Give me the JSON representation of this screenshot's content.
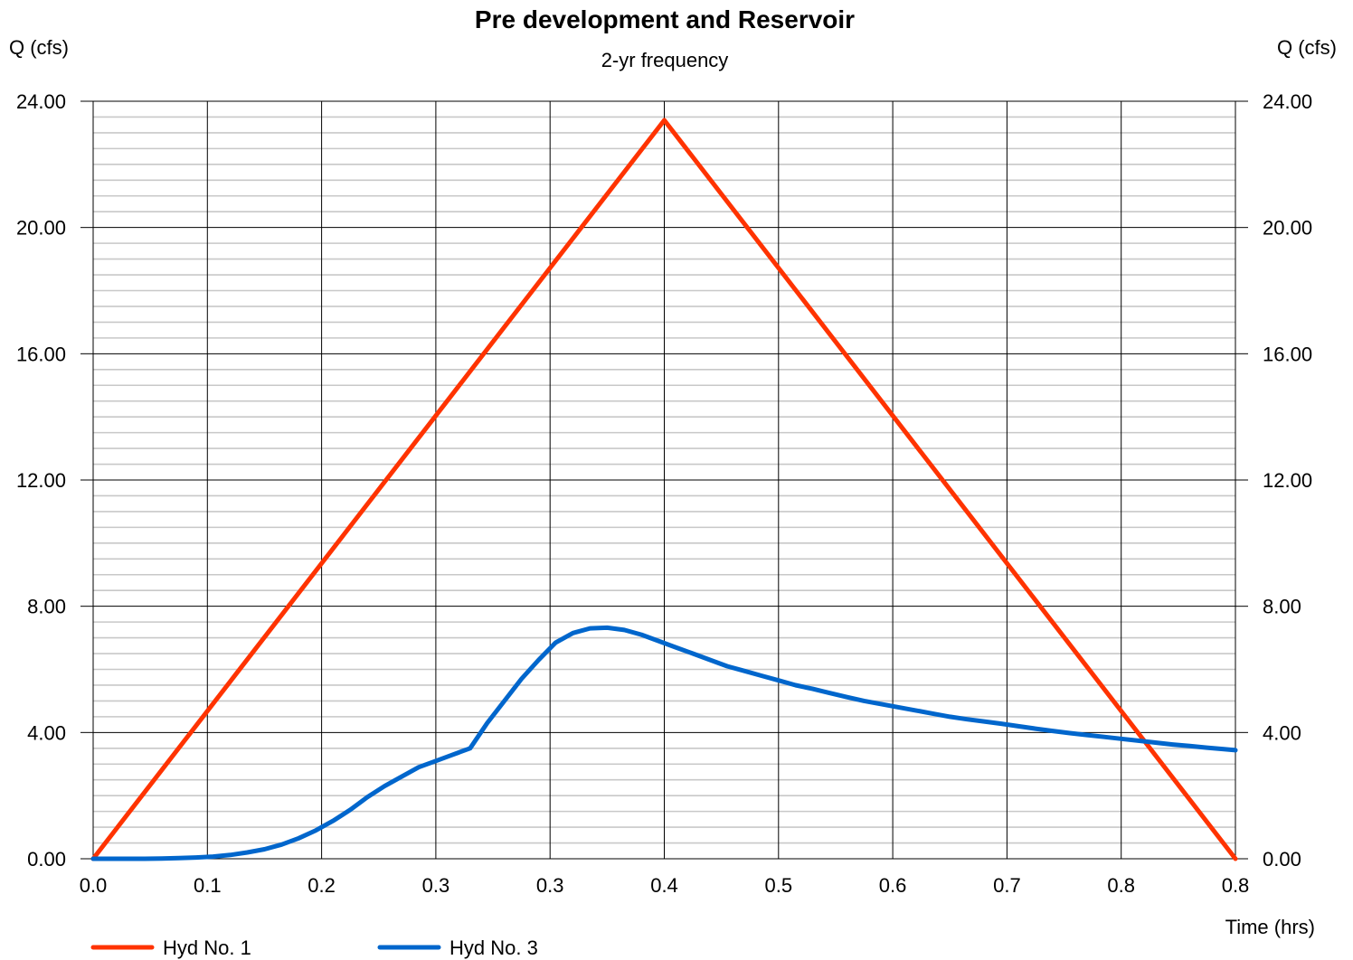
{
  "chart_data": {
    "type": "line",
    "title": "Pre development and Reservoir",
    "subtitle": "2-yr frequency",
    "ylabel_left": "Q (cfs)",
    "ylabel_right": "Q (cfs)",
    "xlabel": "Time (hrs)",
    "xlim": [
      0,
      0.8
    ],
    "ylim": [
      0,
      24
    ],
    "x_tick_labels": [
      "0.0",
      "0.1",
      "0.2",
      "0.3",
      "0.3",
      "0.4",
      "0.5",
      "0.6",
      "0.7",
      "0.8",
      "0.8"
    ],
    "y_tick_labels": [
      "0.00",
      "4.00",
      "8.00",
      "12.00",
      "16.00",
      "20.00",
      "24.00"
    ],
    "y_tick_values": [
      0,
      4,
      8,
      12,
      16,
      20,
      24
    ],
    "grid": true,
    "legend_position": "bottom-left",
    "series": [
      {
        "name": "Hyd No. 1",
        "color": "#ff3300",
        "x": [
          0.0,
          0.4,
          0.8
        ],
        "y": [
          0.0,
          23.4,
          0.0
        ]
      },
      {
        "name": "Hyd No. 3",
        "color": "#0066cc",
        "x": [
          0.0,
          0.012,
          0.024,
          0.036,
          0.048,
          0.06,
          0.072,
          0.084,
          0.096,
          0.108,
          0.12,
          0.132,
          0.144,
          0.156,
          0.168,
          0.18,
          0.192,
          0.204,
          0.216,
          0.228,
          0.24,
          0.252,
          0.264,
          0.276,
          0.288,
          0.3,
          0.312,
          0.324,
          0.336,
          0.348,
          0.36,
          0.372,
          0.384,
          0.396,
          0.408,
          0.42,
          0.432,
          0.444,
          0.456,
          0.468,
          0.48,
          0.492,
          0.504,
          0.516,
          0.528,
          0.54,
          0.552,
          0.564,
          0.576,
          0.588,
          0.6,
          0.612,
          0.624,
          0.636,
          0.648,
          0.66,
          0.672,
          0.684,
          0.696,
          0.708,
          0.72,
          0.732,
          0.744,
          0.756,
          0.768,
          0.78,
          0.792,
          0.8
        ],
        "y": [
          0.0,
          0.0,
          0.0,
          0.0,
          0.01,
          0.02,
          0.04,
          0.07,
          0.12,
          0.2,
          0.3,
          0.45,
          0.65,
          0.9,
          1.2,
          1.55,
          1.95,
          2.3,
          2.6,
          2.9,
          3.1,
          3.3,
          3.5,
          4.3,
          5.0,
          5.7,
          6.3,
          6.85,
          7.15,
          7.3,
          7.32,
          7.25,
          7.1,
          6.9,
          6.7,
          6.5,
          6.3,
          6.1,
          5.95,
          5.8,
          5.65,
          5.5,
          5.38,
          5.25,
          5.12,
          5.0,
          4.9,
          4.8,
          4.7,
          4.6,
          4.5,
          4.42,
          4.35,
          4.28,
          4.2,
          4.12,
          4.05,
          3.98,
          3.92,
          3.86,
          3.8,
          3.74,
          3.68,
          3.62,
          3.57,
          3.52,
          3.47,
          3.44
        ]
      }
    ]
  }
}
